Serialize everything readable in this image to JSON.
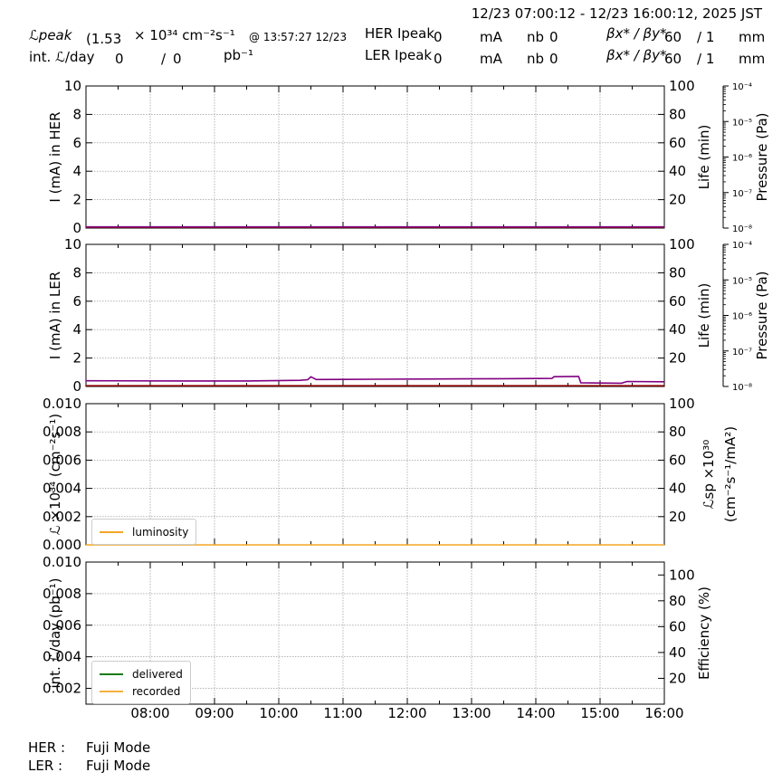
{
  "header": {
    "time_range": "12/23 07:00:12 - 12/23 16:00:12, 2025 JST",
    "lpeak_label": "ℒpeak",
    "lpeak_value": "(1.53",
    "lpeak_unit": "× 10³⁴ cm⁻²s⁻¹",
    "lpeak_time": "@ 13:57:27 12/23",
    "intl_label": "int. ℒ/day",
    "intl_value1": "0",
    "intl_sep": "/",
    "intl_value2": "0",
    "intl_unit": "pb⁻¹",
    "her_ipeak_label": "HER Ipeak",
    "her_ipeak_value": "0",
    "her_ipeak_unit": "mA",
    "her_nb_label": "nb",
    "her_nb_value": "0",
    "her_beta_label": "βx* / βy*",
    "her_beta_x": "60",
    "her_beta_y": "/ 1",
    "her_beta_unit": "mm",
    "ler_ipeak_label": "LER Ipeak",
    "ler_ipeak_value": "0",
    "ler_ipeak_unit": "mA",
    "ler_nb_label": "nb",
    "ler_nb_value": "0",
    "ler_beta_label": "βx* / βy*",
    "ler_beta_x": "60",
    "ler_beta_y": "/ 1",
    "ler_beta_unit": "mm"
  },
  "footer": {
    "her_label": "HER :",
    "her_mode": "Fuji Mode",
    "ler_label": "LER :",
    "ler_mode": "Fuji Mode"
  },
  "colors": {
    "current": "#8b0000",
    "life": "#800080",
    "luminosity": "#f5a623",
    "delivered": "#1a7a1a",
    "recorded": "#f5b041",
    "grid": "#888888"
  },
  "chart_data": [
    {
      "id": "her",
      "type": "line",
      "xlim": [
        "07:00",
        "16:00"
      ],
      "x_ticks": [
        "08:00",
        "09:00",
        "10:00",
        "11:00",
        "12:00",
        "13:00",
        "14:00",
        "15:00",
        "16:00"
      ],
      "ylabel": "I (mA) in HER",
      "ylim": [
        0,
        10
      ],
      "y_ticks": [
        "0",
        "2",
        "4",
        "6",
        "8",
        "10"
      ],
      "y2label": "Life (min)",
      "y2lim": [
        0,
        100
      ],
      "y2_ticks": [
        "20",
        "40",
        "60",
        "80",
        "100"
      ],
      "y3label": "Pressure (Pa)",
      "y3lim": [
        "1e-8",
        "1e-4"
      ],
      "y3_scale": "log",
      "y3_ticks": [
        "10⁻⁴",
        "10⁻⁵",
        "10⁻⁶",
        "10⁻⁷",
        "10⁻⁸"
      ],
      "grid": true,
      "series": [
        {
          "axis": "y",
          "color_key": "current",
          "x": [
            "07:00",
            "16:00"
          ],
          "values": [
            0.05,
            0.05
          ]
        },
        {
          "axis": "y2",
          "color_key": "life",
          "x": [
            "07:00",
            "16:00"
          ],
          "values": [
            0.8,
            0.8
          ]
        }
      ]
    },
    {
      "id": "ler",
      "type": "line",
      "xlim": [
        "07:00",
        "16:00"
      ],
      "x_ticks": [
        "08:00",
        "09:00",
        "10:00",
        "11:00",
        "12:00",
        "13:00",
        "14:00",
        "15:00",
        "16:00"
      ],
      "ylabel": "I (mA) in LER",
      "ylim": [
        0,
        10
      ],
      "y_ticks": [
        "0",
        "2",
        "4",
        "6",
        "8",
        "10"
      ],
      "y2label": "Life (min)",
      "y2lim": [
        0,
        100
      ],
      "y2_ticks": [
        "20",
        "40",
        "60",
        "80",
        "100"
      ],
      "y3label": "Pressure (Pa)",
      "y3lim": [
        "1e-8",
        "1e-4"
      ],
      "y3_scale": "log",
      "y3_ticks": [
        "10⁻⁴",
        "10⁻⁵",
        "10⁻⁶",
        "10⁻⁷",
        "10⁻⁸"
      ],
      "grid": true,
      "series": [
        {
          "axis": "y",
          "color_key": "current",
          "x": [
            "07:00",
            "16:00"
          ],
          "values": [
            0.05,
            0.05
          ]
        },
        {
          "axis": "y2",
          "color_key": "life",
          "x": [
            "07:00",
            "08:30",
            "09:30",
            "10:20",
            "10:27",
            "10:30",
            "10:35",
            "11:30",
            "12:30",
            "13:30",
            "14:15",
            "14:17",
            "14:40",
            "14:42",
            "15:20",
            "15:25",
            "16:00"
          ],
          "values": [
            4.0,
            3.9,
            3.9,
            4.3,
            4.8,
            6.8,
            4.9,
            5.1,
            5.3,
            5.5,
            5.7,
            6.9,
            7.1,
            2.6,
            2.3,
            3.5,
            3.3
          ]
        }
      ]
    },
    {
      "id": "lum",
      "type": "line",
      "xlim": [
        "07:00",
        "16:00"
      ],
      "x_ticks": [
        "08:00",
        "09:00",
        "10:00",
        "11:00",
        "12:00",
        "13:00",
        "14:00",
        "15:00",
        "16:00"
      ],
      "ylabel": "ℒ ×10³⁴ (cm⁻²s⁻¹)",
      "ylim": [
        0,
        0.01
      ],
      "y_ticks": [
        "0.000",
        "0.002",
        "0.004",
        "0.006",
        "0.008",
        "0.010"
      ],
      "y2label_line1": "ℒsp ×10³⁰",
      "y2label_line2": "(cm⁻²s⁻¹/mA²)",
      "y2lim": [
        0,
        100
      ],
      "y2_ticks": [
        "20",
        "40",
        "60",
        "80",
        "100"
      ],
      "grid": true,
      "legend": "bottom-left",
      "series": [
        {
          "name": "luminosity",
          "color_key": "luminosity",
          "x": [
            "07:00",
            "16:00"
          ],
          "values": [
            0,
            0
          ]
        }
      ]
    },
    {
      "id": "intl",
      "type": "line",
      "xlim": [
        "07:00",
        "16:00"
      ],
      "x_ticks": [
        "08:00",
        "09:00",
        "10:00",
        "11:00",
        "12:00",
        "13:00",
        "14:00",
        "15:00",
        "16:00"
      ],
      "ylabel": "int. ℒ/day (pb⁻¹)",
      "ylim": [
        0.001,
        0.01
      ],
      "y_ticks": [
        "0.002",
        "0.004",
        "0.006",
        "0.008",
        "0.010"
      ],
      "y2label": "Efficiency (%)",
      "y2lim": [
        0,
        110
      ],
      "y2_ticks": [
        "20",
        "40",
        "60",
        "80",
        "100"
      ],
      "grid": true,
      "legend": "bottom-left",
      "series": [
        {
          "name": "delivered",
          "color_key": "delivered"
        },
        {
          "name": "recorded",
          "color_key": "recorded"
        }
      ]
    }
  ]
}
